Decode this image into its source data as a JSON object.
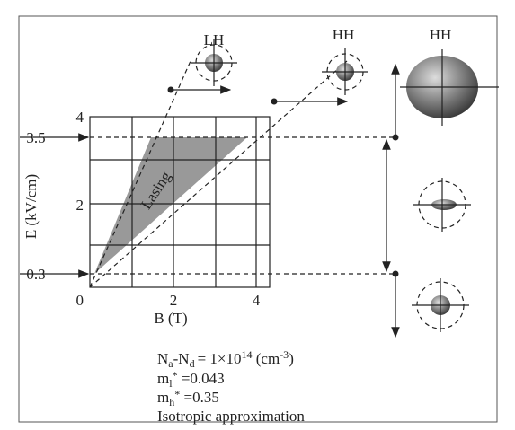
{
  "figure": {
    "plot": {
      "x_label": "B (T)",
      "y_label": "E (kV/cm)",
      "region_label": "Lasing",
      "y_ticks": [
        "4",
        "3.5",
        "2",
        "0.3"
      ],
      "x_ticks": [
        "0",
        "2",
        "4"
      ]
    },
    "icons": {
      "lh": "LH",
      "hh_small": "HH",
      "hh_large": "HH"
    },
    "params": {
      "density": {
        "n": "N",
        "a": "a",
        "mid": "-N",
        "d": "d",
        "eq": "= 1×10",
        "exp": "14",
        "unit": " (cm",
        "uexp": "-3",
        "close": ")"
      },
      "ml": {
        "m": "m",
        "sub": "l",
        "sup": "*",
        "val": " =0.043"
      },
      "mh": {
        "m": "m",
        "sub": "h",
        "sup": "*",
        "val": " =0.35"
      },
      "note": "Isotropic approximation"
    }
  }
}
